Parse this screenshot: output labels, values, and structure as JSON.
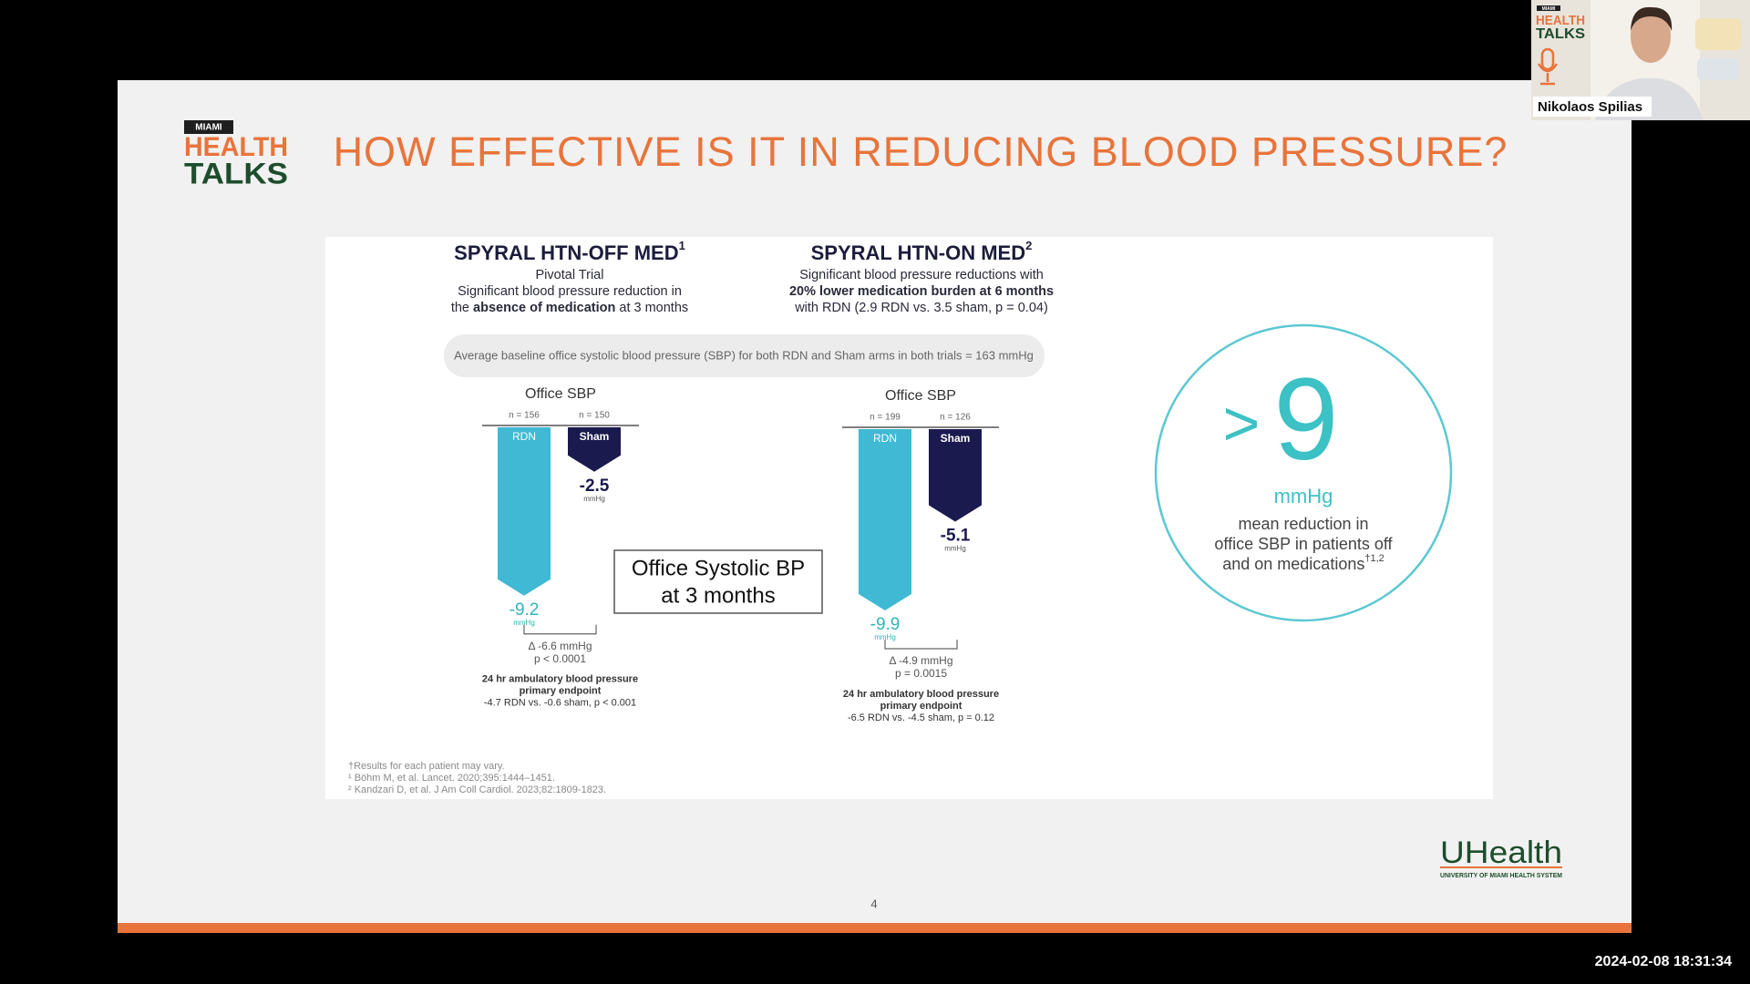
{
  "call": {
    "speaker": "Nikolaos Spilias",
    "timestamp": "2024-02-08 18:31:34",
    "logo": {
      "top": "MIAMI",
      "line1": "HEALTH",
      "line2": "TALKS"
    }
  },
  "slide": {
    "logo": {
      "top": "MIAMI",
      "line1": "HEALTH",
      "line2": "TALKS"
    },
    "title": "HOW EFFECTIVE IS IT IN REDUCING BLOOD PRESSURE?",
    "trials": [
      {
        "name": "SPYRAL HTN-OFF MED",
        "sup": "1",
        "desc": [
          [
            {
              "text": "Pivotal Trial"
            }
          ],
          [
            {
              "text": "Significant blood pressure reduction in"
            }
          ],
          [
            {
              "text": "the "
            },
            {
              "text": "absence of medication",
              "bold": true
            },
            {
              "text": " at 3 months"
            }
          ]
        ]
      },
      {
        "name": "SPYRAL HTN-ON MED",
        "sup": "2",
        "desc": [
          [
            {
              "text": "Significant blood pressure reductions with"
            }
          ],
          [
            {
              "text": "20% lower medication burden at 6 months",
              "bold": true
            }
          ],
          [
            {
              "text": "with RDN (2.9 RDN vs. 3.5 sham, p = 0.04)"
            }
          ]
        ]
      }
    ],
    "banner": "Average baseline office systolic blood pressure (SBP) for both RDN and Sham arms in both trials = 163 mmHg",
    "charts": [
      {
        "title": "Office SBP",
        "unit": "mmHg",
        "arms": [
          {
            "name": "RDN",
            "n": "n = 156",
            "value": -9.2,
            "color": "#3fb9d4"
          },
          {
            "name": "Sham",
            "n": "n = 150",
            "value": -2.5,
            "color": "#1b1a4f"
          }
        ],
        "delta": "Δ -6.6 mmHg",
        "p": "p < 0.0001",
        "ambulatory": [
          "24 hr ambulatory blood pressure",
          "primary endpoint",
          "-4.7 RDN vs. -0.6 sham, p < 0.001"
        ]
      },
      {
        "title": "Office SBP",
        "unit": "mmHg",
        "arms": [
          {
            "name": "RDN",
            "n": "n = 199",
            "value": -9.9,
            "color": "#3fb9d4"
          },
          {
            "name": "Sham",
            "n": "n = 126",
            "value": -5.1,
            "color": "#1b1a4f"
          }
        ],
        "delta": "Δ -4.9 mmHg",
        "p": "p = 0.0015",
        "ambulatory": [
          "24 hr ambulatory blood pressure",
          "primary endpoint",
          "-6.5 RDN vs. -4.5 sham, p = 0.12"
        ]
      }
    ],
    "callout": [
      "Office Systolic BP",
      "at 3 months"
    ],
    "highlight": {
      "big_prefix": ">",
      "big": "9",
      "unit": "mmHg",
      "lines": [
        "mean reduction in",
        "office SBP in patients off",
        "and on medications"
      ],
      "sup": "†1,2"
    },
    "footnotes": [
      "†Results for each patient may vary.",
      "¹ Böhm M, et al. Lancet. 2020;395:1444–1451.",
      "² Kandzari D, et al. J Am Coll Cardiol. 2023;82:1809-1823."
    ],
    "brand": {
      "name": "UHealth",
      "sub": "UNIVERSITY OF MIAMI HEALTH SYSTEM"
    },
    "page": "4"
  }
}
